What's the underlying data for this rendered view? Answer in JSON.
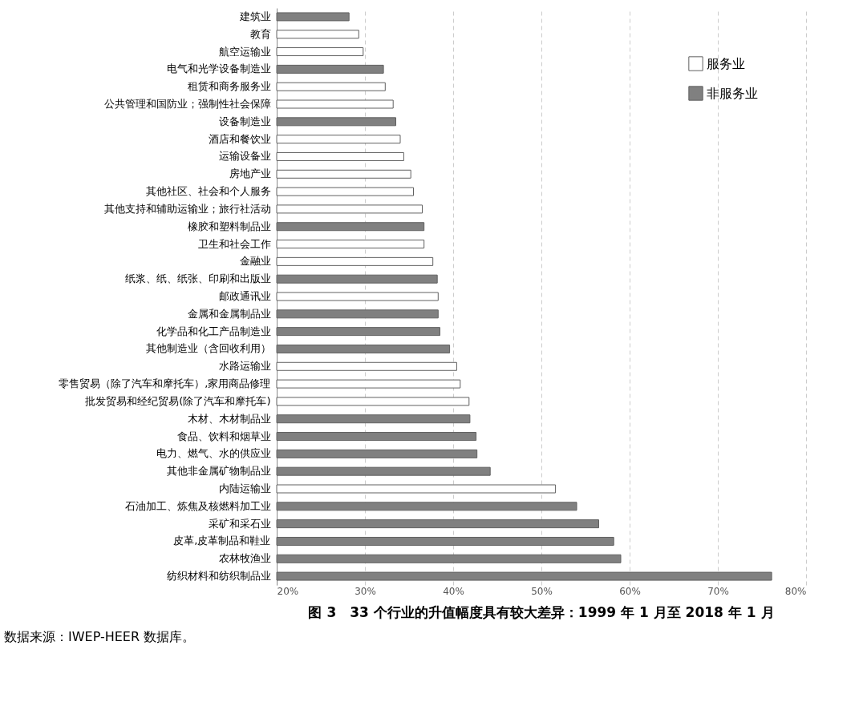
{
  "chart_data": {
    "type": "bar",
    "orientation": "horizontal",
    "title": "图 3　33 个行业的升值幅度具有较大差异：1999 年 1 月至 2018 年 1 月",
    "annotations": [
      "数据来源：IWEP-HEER 数据库。"
    ],
    "categories": [
      "建筑业",
      "教育",
      "航空运输业",
      "电气和光学设备制造业",
      "租赁和商务服务业",
      "公共管理和国防业；强制性社会保障",
      "设备制造业",
      "酒店和餐饮业",
      "运输设备业",
      "房地产业",
      "其他社区、社会和个人服务",
      "其他支持和辅助运输业；旅行社活动",
      "橡胶和塑料制品业",
      "卫生和社会工作",
      "金融业",
      "纸浆、纸、纸张、印刷和出版业",
      "邮政通讯业",
      "金属和金属制品业",
      "化学品和化工产品制造业",
      "其他制造业（含回收利用）",
      "水路运输业",
      "零售贸易（除了汽车和摩托车）,家用商品修理",
      "批发贸易和经纪贸易(除了汽车和摩托车)",
      "木材、木材制品业",
      "食品、饮料和烟草业",
      "电力、燃气、水的供应业",
      "其他非金属矿物制品业",
      "内陆运输业",
      "石油加工、炼焦及核燃料加工业",
      "采矿和采石业",
      "皮革,皮革制品和鞋业",
      "农林牧渔业",
      "纺织材料和纺织制品业"
    ],
    "series": [
      {
        "name": "服务业",
        "color": "#ffffff",
        "values": [
          null,
          29.3,
          29.8,
          null,
          32.3,
          33.2,
          null,
          34.0,
          34.4,
          35.2,
          35.5,
          36.5,
          null,
          36.7,
          37.7,
          null,
          38.3,
          null,
          null,
          null,
          40.4,
          40.8,
          41.8,
          null,
          null,
          null,
          null,
          51.6,
          null,
          null,
          null,
          null,
          null
        ]
      },
      {
        "name": "非服务业",
        "color": "#808080",
        "values": [
          28.2,
          null,
          null,
          32.1,
          null,
          null,
          33.5,
          null,
          null,
          null,
          null,
          null,
          36.7,
          null,
          null,
          38.2,
          null,
          38.3,
          38.5,
          39.6,
          null,
          null,
          null,
          41.9,
          42.6,
          42.7,
          44.2,
          null,
          54.0,
          56.5,
          58.2,
          59.0,
          76.1
        ]
      }
    ],
    "xlim": [
      20,
      80
    ],
    "xticks": [
      {
        "value": 20,
        "label": "20%"
      },
      {
        "value": 30,
        "label": "30%"
      },
      {
        "value": 40,
        "label": "40%"
      },
      {
        "value": 50,
        "label": "50%"
      },
      {
        "value": 60,
        "label": "60%"
      },
      {
        "value": 70,
        "label": "70%"
      },
      {
        "value": 80,
        "label": "80%"
      }
    ],
    "grid": "x",
    "legend": "top right"
  }
}
